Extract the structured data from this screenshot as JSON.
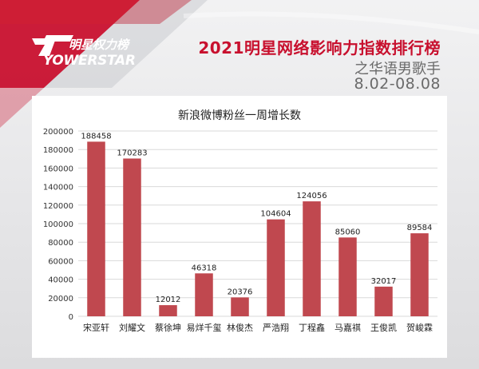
{
  "brand": {
    "name_cn": "明星权力榜",
    "name_en": "YOWERSTAR"
  },
  "header": {
    "title": "2021明星网络影响力指数排行榜",
    "subtitle": "之华语男歌手",
    "date_range": "8.02-08.08"
  },
  "colors": {
    "accent": "#c8102e",
    "bar": "#c0484f",
    "grid": "#d9d9d9"
  },
  "chart_data": {
    "type": "bar",
    "title": "新浪微博粉丝一周增长数",
    "categories": [
      "宋亚轩",
      "刘耀文",
      "蔡徐坤",
      "易烊千玺",
      "林俊杰",
      "严浩翔",
      "丁程鑫",
      "马嘉祺",
      "王俊凯",
      "贺峻霖"
    ],
    "values": [
      188458,
      170283,
      12012,
      46318,
      20376,
      104604,
      124056,
      85060,
      32017,
      89584
    ],
    "xlabel": "",
    "ylabel": "",
    "ylim": [
      0,
      200000
    ],
    "yticks": [
      "0",
      "20000",
      "40000",
      "60000",
      "80000",
      "100000",
      "120000",
      "140000",
      "160000",
      "180000",
      "200000"
    ],
    "grid": true,
    "data_labels": true
  }
}
